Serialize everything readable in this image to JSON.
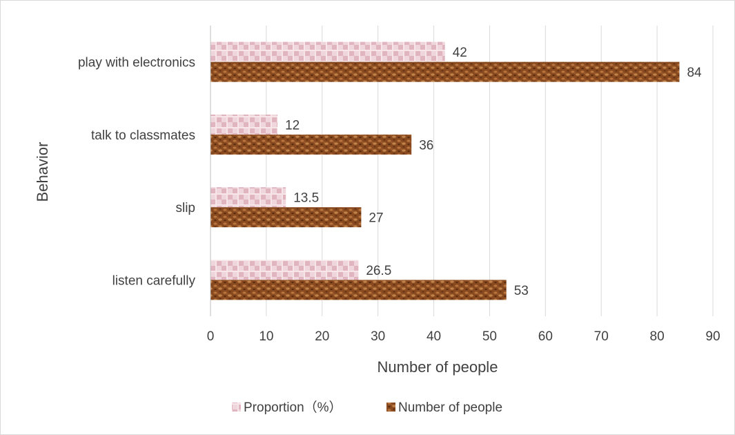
{
  "chart_data": {
    "type": "bar",
    "orientation": "horizontal",
    "title": "",
    "xlabel": "Number of people",
    "ylabel": "Behavior",
    "xlim": [
      0,
      90
    ],
    "x_ticks": [
      "0",
      "10",
      "20",
      "30",
      "40",
      "50",
      "60",
      "70",
      "80",
      "90"
    ],
    "grid": "vertical",
    "legend_position": "bottom",
    "categories": [
      "play with electronics",
      "talk to classmates",
      "slip",
      "listen carefully"
    ],
    "series": [
      {
        "name": "Proportion（%）",
        "values": [
          42,
          12,
          13.5,
          26.5
        ],
        "labels": [
          "42",
          "12",
          "13.5",
          "26.5"
        ],
        "color": "#e6c4cc",
        "pattern": "checkered"
      },
      {
        "name": "Number of people",
        "values": [
          84,
          36,
          27,
          53
        ],
        "labels": [
          "84",
          "36",
          "27",
          "53"
        ],
        "color": "#8b4a20",
        "pattern": "mottled"
      }
    ]
  }
}
